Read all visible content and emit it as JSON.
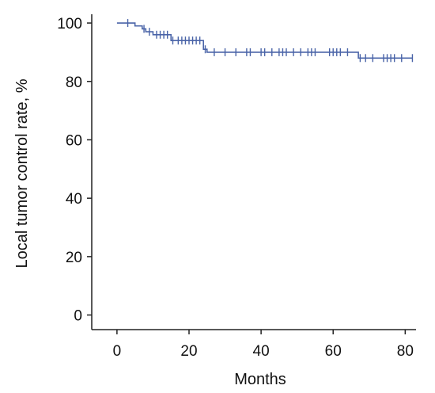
{
  "chart_data": {
    "type": "line",
    "step": true,
    "xlabel": "Months",
    "ylabel": "Local tumor control rate, %",
    "xlim": [
      -7,
      83
    ],
    "ylim": [
      -5,
      103
    ],
    "xticks": [
      0,
      20,
      40,
      60,
      80
    ],
    "yticks": [
      0,
      20,
      40,
      60,
      80,
      100
    ],
    "grid": false,
    "line_color": "#4a64a8",
    "series": [
      {
        "steps": [
          {
            "x": 0,
            "y": 100
          },
          {
            "x": 5,
            "y": 99
          },
          {
            "x": 7,
            "y": 98
          },
          {
            "x": 8,
            "y": 97
          },
          {
            "x": 10,
            "y": 96
          },
          {
            "x": 15,
            "y": 94
          },
          {
            "x": 24,
            "y": 91
          },
          {
            "x": 25,
            "y": 90
          },
          {
            "x": 67,
            "y": 88
          },
          {
            "x": 82,
            "y": 88
          }
        ],
        "censored": [
          {
            "x": 3,
            "y": 100
          },
          {
            "x": 7.5,
            "y": 98
          },
          {
            "x": 9,
            "y": 97
          },
          {
            "x": 11,
            "y": 96
          },
          {
            "x": 12,
            "y": 96
          },
          {
            "x": 13,
            "y": 96
          },
          {
            "x": 14,
            "y": 96
          },
          {
            "x": 15.5,
            "y": 94
          },
          {
            "x": 17,
            "y": 94
          },
          {
            "x": 18,
            "y": 94
          },
          {
            "x": 19,
            "y": 94
          },
          {
            "x": 20,
            "y": 94
          },
          {
            "x": 21,
            "y": 94
          },
          {
            "x": 22,
            "y": 94
          },
          {
            "x": 23,
            "y": 94
          },
          {
            "x": 24.5,
            "y": 91
          },
          {
            "x": 27,
            "y": 90
          },
          {
            "x": 30,
            "y": 90
          },
          {
            "x": 33,
            "y": 90
          },
          {
            "x": 36,
            "y": 90
          },
          {
            "x": 37,
            "y": 90
          },
          {
            "x": 40,
            "y": 90
          },
          {
            "x": 41,
            "y": 90
          },
          {
            "x": 43,
            "y": 90
          },
          {
            "x": 45,
            "y": 90
          },
          {
            "x": 46,
            "y": 90
          },
          {
            "x": 47,
            "y": 90
          },
          {
            "x": 49,
            "y": 90
          },
          {
            "x": 51,
            "y": 90
          },
          {
            "x": 53,
            "y": 90
          },
          {
            "x": 54,
            "y": 90
          },
          {
            "x": 55,
            "y": 90
          },
          {
            "x": 59,
            "y": 90
          },
          {
            "x": 60,
            "y": 90
          },
          {
            "x": 61,
            "y": 90
          },
          {
            "x": 62,
            "y": 90
          },
          {
            "x": 64,
            "y": 90
          },
          {
            "x": 67.5,
            "y": 88
          },
          {
            "x": 69,
            "y": 88
          },
          {
            "x": 71,
            "y": 88
          },
          {
            "x": 74,
            "y": 88
          },
          {
            "x": 75,
            "y": 88
          },
          {
            "x": 76,
            "y": 88
          },
          {
            "x": 77,
            "y": 88
          },
          {
            "x": 79,
            "y": 88
          },
          {
            "x": 82,
            "y": 88
          }
        ]
      }
    ]
  }
}
